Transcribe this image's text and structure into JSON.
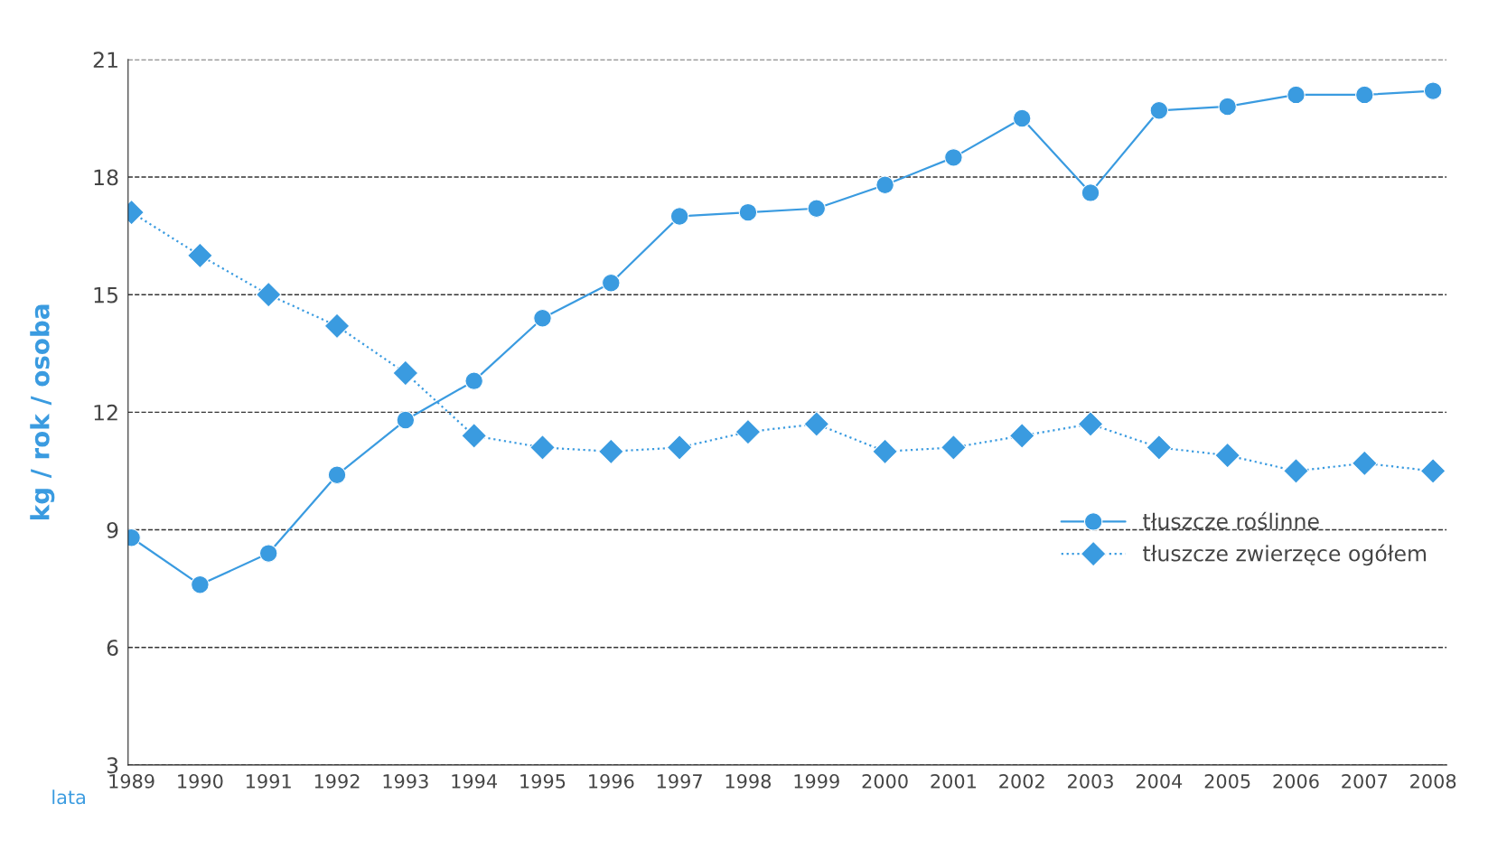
{
  "chart_data": {
    "type": "line",
    "xlabel": "lata",
    "ylabel": "kg / rok / osoba",
    "categories": [
      "1989",
      "1990",
      "1991",
      "1992",
      "1993",
      "1994",
      "1995",
      "1996",
      "1997",
      "1998",
      "1999",
      "2000",
      "2001",
      "2002",
      "2003",
      "2004",
      "2005",
      "2006",
      "2007",
      "2008"
    ],
    "series": [
      {
        "name": "tłuszcze roślinne",
        "color": "#3a9be0",
        "marker": "circle",
        "line_style": "solid",
        "values": [
          8.8,
          7.6,
          8.4,
          10.4,
          11.8,
          12.8,
          14.4,
          15.3,
          17.0,
          17.1,
          17.2,
          17.8,
          18.5,
          19.5,
          17.6,
          19.7,
          19.8,
          20.1,
          20.1,
          20.2
        ]
      },
      {
        "name": "tłuszcze zwierzęce ogółem",
        "color": "#3a9be0",
        "marker": "diamond",
        "line_style": "dotted",
        "values": [
          17.1,
          16.0,
          15.0,
          14.2,
          13.0,
          11.4,
          11.1,
          11.0,
          11.1,
          11.5,
          11.7,
          11.0,
          11.1,
          11.4,
          11.7,
          11.1,
          10.9,
          10.5,
          10.7,
          10.5
        ]
      }
    ],
    "ylim": [
      3,
      21
    ],
    "yticks": [
      3,
      6,
      9,
      12,
      15,
      18,
      21
    ],
    "grid": "y",
    "legend": "right"
  }
}
